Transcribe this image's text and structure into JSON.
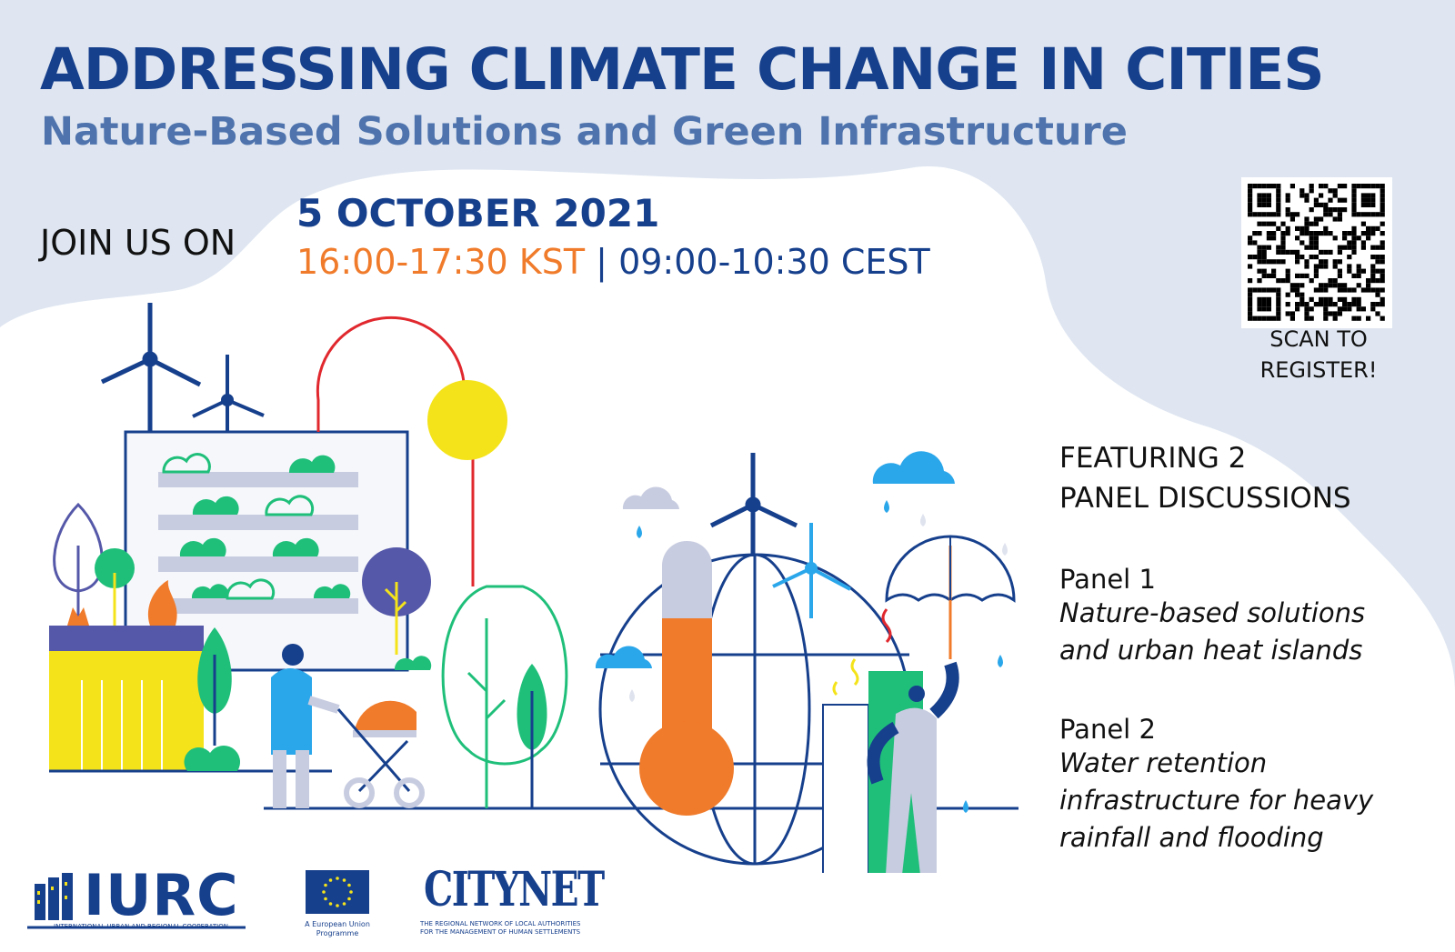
{
  "title": "ADDRESSING CLIMATE CHANGE IN CITIES",
  "subtitle": "Nature-Based Solutions and Green Infrastructure",
  "join_label": "JOIN US ON",
  "date": "5 OCTOBER 2021",
  "time_kst": "16:00-17:30 KST",
  "time_separator": "|",
  "time_cest": "09:00-10:30 CEST",
  "scan_line1": "SCAN TO",
  "scan_line2": "REGISTER!",
  "featuring_line1": "FEATURING 2",
  "featuring_line2": "PANEL DISCUSSIONS",
  "panels": [
    {
      "title": "Panel 1",
      "desc_line1": "Nature-based solutions",
      "desc_line2": "and urban heat islands"
    },
    {
      "title": "Panel 2",
      "desc_line1": "Water retention",
      "desc_line2": "infrastructure for heavy",
      "desc_line3": "rainfall and flooding"
    }
  ],
  "logos": {
    "iurc_text": "IURC",
    "iurc_caption": "INTERNATIONAL URBAN AND REGIONAL COOPERATION",
    "eu_caption_line1": "A European Union",
    "eu_caption_line2": "Programme",
    "citynet_text": "CITYNET",
    "citynet_caption_line1": "THE REGIONAL NETWORK OF LOCAL AUTHORITIES",
    "citynet_caption_line2": "FOR THE MANAGEMENT OF HUMAN SETTLEMENTS"
  },
  "colors": {
    "navy": "#163f8c",
    "blue_light": "#4e73ad",
    "orange": "#f07b2b",
    "green": "#1fbf7a",
    "yellow": "#f4e31a",
    "sky": "#2aa6ea",
    "grey": "#c8cce0",
    "purple": "#5558a8",
    "bg": "#dfe6f1"
  }
}
